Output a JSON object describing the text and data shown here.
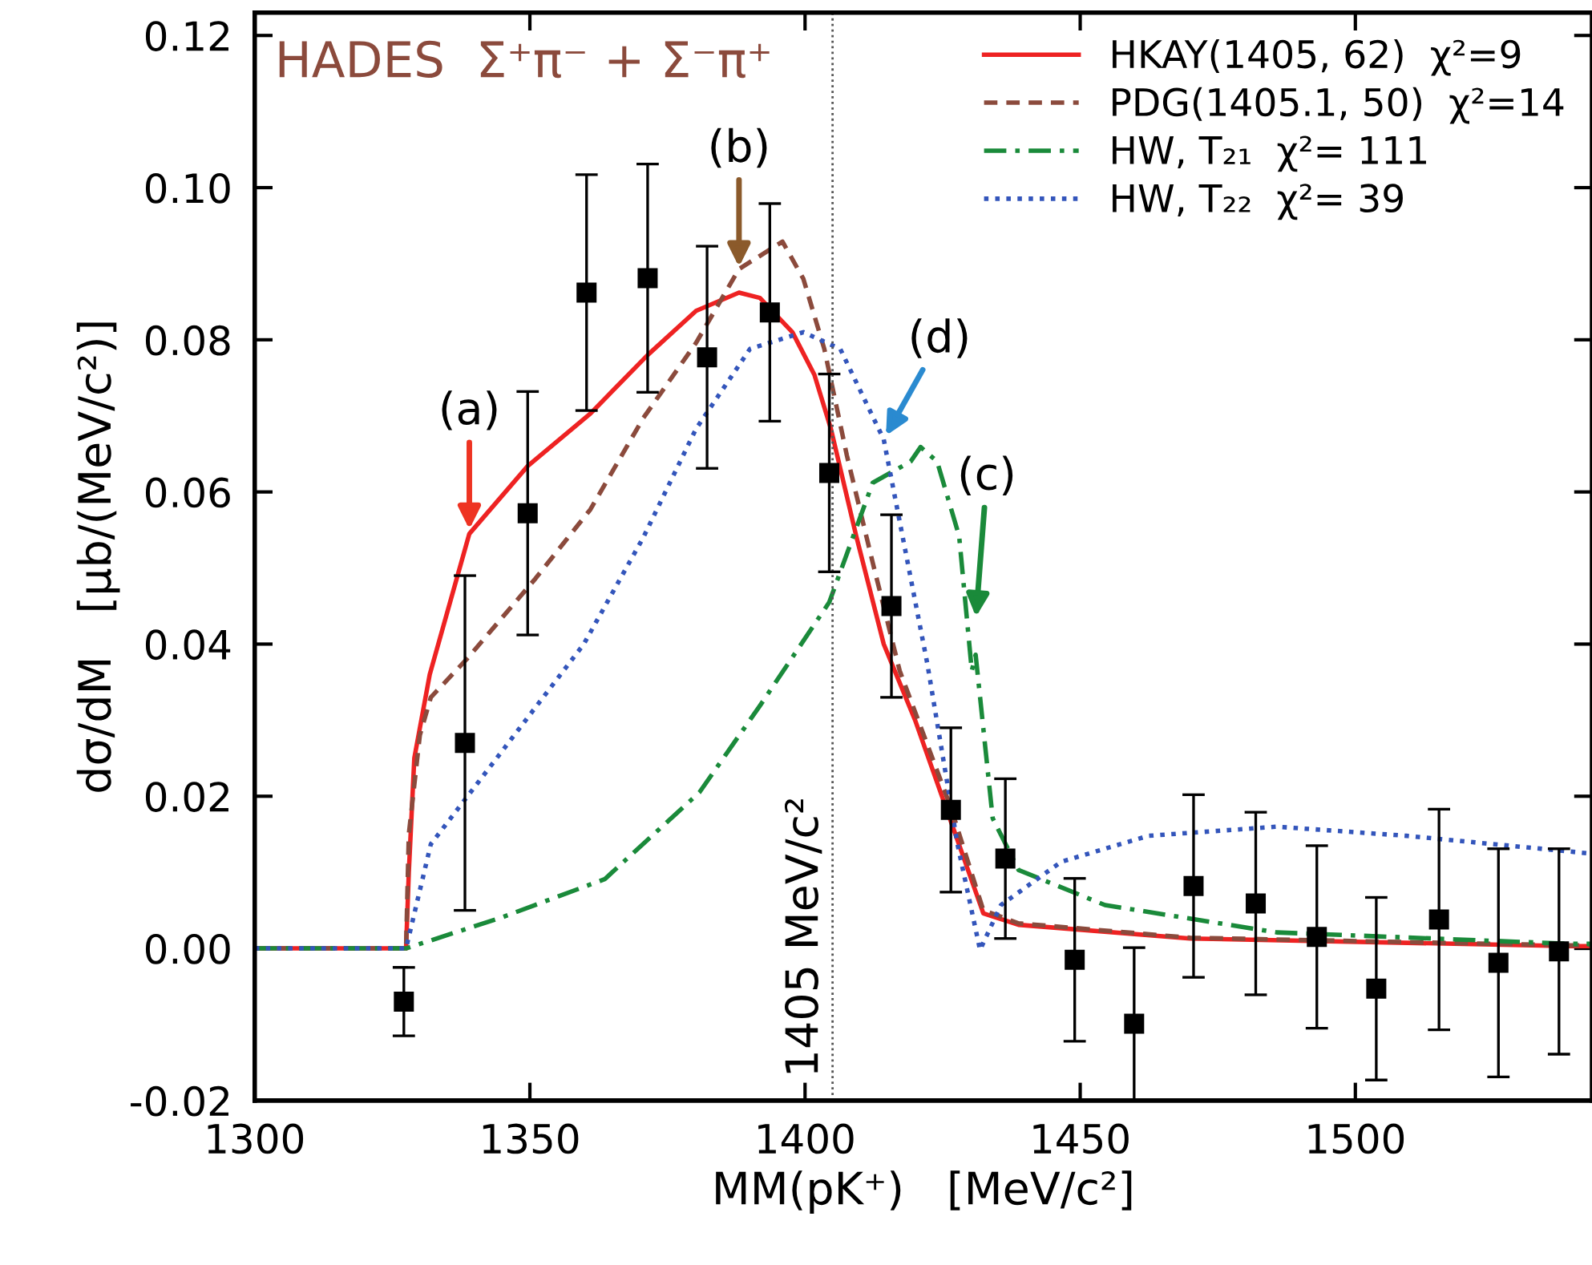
{
  "chart_data": {
    "type": "line",
    "xlabel": "MM(pK⁺)   [MeV/c²]",
    "ylabel": "dσ/dM   [μb/(MeV/c²)]",
    "xlim": [
      1300,
      1543
    ],
    "xticks": [
      1300,
      1350,
      1400,
      1450,
      1500
    ],
    "ylim": [
      -0.02,
      0.123
    ],
    "yticks": [
      {
        "value": -0.02,
        "label": "-0.02"
      },
      {
        "value": 0,
        "label": "0.00"
      },
      {
        "value": 0.02,
        "label": "0.02"
      },
      {
        "value": 0.04,
        "label": "0.04"
      },
      {
        "value": 0.06,
        "label": "0.06"
      },
      {
        "value": 0.08,
        "label": "0.08"
      },
      {
        "value": 0.1,
        "label": "0.10"
      },
      {
        "value": 0.12,
        "label": "0.12"
      }
    ],
    "grid": false,
    "legend": "top right",
    "ref_lines": [
      {
        "axis": "x",
        "value": 1405,
        "label": "1405 MeV/c²",
        "color": "#555555",
        "line_style": "dotted"
      }
    ],
    "annotations": [
      "HADES  Σ⁺π⁻ + Σ⁻π⁺",
      {
        "text": "(a)",
        "x": 1339,
        "y": 0.0545
      },
      {
        "text": "(b)",
        "x": 1388,
        "y": 0.089
      },
      {
        "text": "(c)",
        "x": 1431,
        "y": 0.043
      },
      {
        "text": "(d)",
        "x": 1414.3,
        "y": 0.0669
      }
    ],
    "series": [
      {
        "name": "HKAY(1405, 62)  χ²=9",
        "color": "#ee2222",
        "line_style": "solid",
        "marker": "none",
        "x": [
          1300,
          1327.5,
          1328,
          1329,
          1331.8,
          1339,
          1349.6,
          1361,
          1371.4,
          1380.2,
          1388,
          1391.8,
          1397.7,
          1401.7,
          1404.7,
          1409.3,
          1414.3,
          1420,
          1432.4,
          1438.8,
          1470,
          1539,
          1543
        ],
        "values": [
          0,
          0,
          0.01,
          0.025,
          0.036,
          0.0545,
          0.0634,
          0.0703,
          0.078,
          0.0838,
          0.0862,
          0.0855,
          0.081,
          0.0754,
          0.0683,
          0.0542,
          0.04,
          0.03,
          0.0046,
          0.0031,
          0.0013,
          0.0003,
          0.0003
        ]
      },
      {
        "name": "PDG(1405.1, 50)  χ²=14",
        "color": "#8b4a3c",
        "line_style": "dashed",
        "marker": "none",
        "x": [
          1300,
          1327.5,
          1328,
          1330,
          1332,
          1338.5,
          1351,
          1361,
          1370.6,
          1380.2,
          1388,
          1395.9,
          1399.7,
          1403.5,
          1407.6,
          1412.3,
          1417.2,
          1426.5,
          1432.4,
          1438.8,
          1470,
          1539,
          1543
        ],
        "values": [
          0,
          0,
          0.015,
          0.028,
          0.033,
          0.038,
          0.0486,
          0.0577,
          0.0697,
          0.0796,
          0.0893,
          0.0929,
          0.088,
          0.0788,
          0.0648,
          0.0507,
          0.0365,
          0.0185,
          0.005,
          0.0033,
          0.0014,
          0.0004,
          0.0004
        ]
      },
      {
        "name": "HW, T₂₁  χ²= 111",
        "color": "#1a8a3a",
        "line_style": "dashdot",
        "marker": "none",
        "x": [
          1300,
          1327.5,
          1344.6,
          1363.6,
          1380.8,
          1391.8,
          1404.4,
          1412.3,
          1419.2,
          1421,
          1424,
          1428,
          1430.3,
          1431,
          1434.1,
          1438.8,
          1454.5,
          1485.7,
          1539,
          1543
        ],
        "values": [
          0,
          0,
          0.004,
          0.0091,
          0.0205,
          0.0319,
          0.0455,
          0.0612,
          0.064,
          0.0659,
          0.064,
          0.0542,
          0.0365,
          0.0386,
          0.0171,
          0.0103,
          0.0057,
          0.0021,
          0.0006,
          0.0006
        ]
      },
      {
        "name": "HW, T₂₂  χ²= 39",
        "color": "#3355bb",
        "line_style": "dotted",
        "marker": "none",
        "x": [
          1300,
          1327.5,
          1332,
          1344.6,
          1359.8,
          1370.6,
          1380.2,
          1390,
          1399.7,
          1406.4,
          1414.3,
          1422.2,
          1427.7,
          1431.8,
          1435.6,
          1446.6,
          1462.4,
          1485.7,
          1509.3,
          1542.3
        ],
        "values": [
          0,
          0,
          0.0137,
          0.0256,
          0.04,
          0.054,
          0.0683,
          0.0788,
          0.081,
          0.0788,
          0.0669,
          0.0375,
          0.0137,
          -0.0002,
          0.0057,
          0.0114,
          0.0148,
          0.016,
          0.0148,
          0.0125
        ]
      },
      {
        "type": "scatter",
        "color": "#000000",
        "marker": "square",
        "x": [
          1327.1,
          1338.2,
          1349.6,
          1360.3,
          1371.4,
          1382.2,
          1393.6,
          1404.4,
          1415.7,
          1426.5,
          1436.4,
          1449,
          1459.8,
          1470.6,
          1481.9,
          1493,
          1503.8,
          1515.2,
          1526,
          1537
        ],
        "values": [
          -0.007,
          0.027,
          0.0572,
          0.0862,
          0.0881,
          0.0777,
          0.0836,
          0.0625,
          0.045,
          0.0182,
          0.0118,
          -0.0015,
          -0.0099,
          0.0082,
          0.0059,
          0.0015,
          -0.0053,
          0.0038,
          -0.0019,
          -0.0004
        ],
        "errors": [
          0.0045,
          0.022,
          0.016,
          0.0155,
          0.015,
          0.0146,
          0.0143,
          0.013,
          0.012,
          0.0108,
          0.0105,
          0.0107,
          0.01,
          0.012,
          0.012,
          0.012,
          0.012,
          0.0145,
          0.015,
          0.0135
        ]
      }
    ]
  }
}
